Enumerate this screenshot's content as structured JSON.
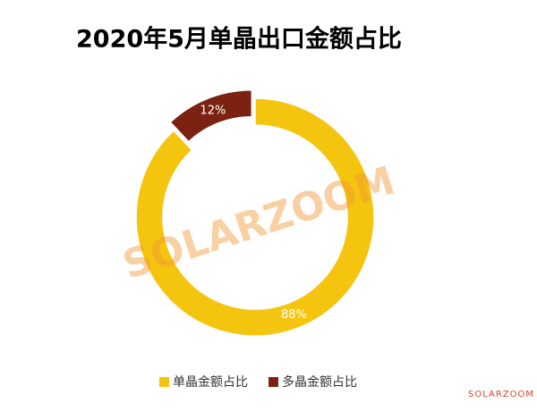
{
  "chart_data": {
    "type": "donut",
    "title": "2020年5月单晶出口金额占比",
    "categories": [
      "单晶金额占比",
      "多晶金额占比"
    ],
    "values": [
      88,
      12
    ],
    "value_labels": [
      "88%",
      "12%"
    ],
    "colors": [
      "#F5C40F",
      "#7B2210"
    ],
    "legend": "bottom",
    "watermark": "SOLARZOOM",
    "brand": "SOLARZOOM"
  }
}
